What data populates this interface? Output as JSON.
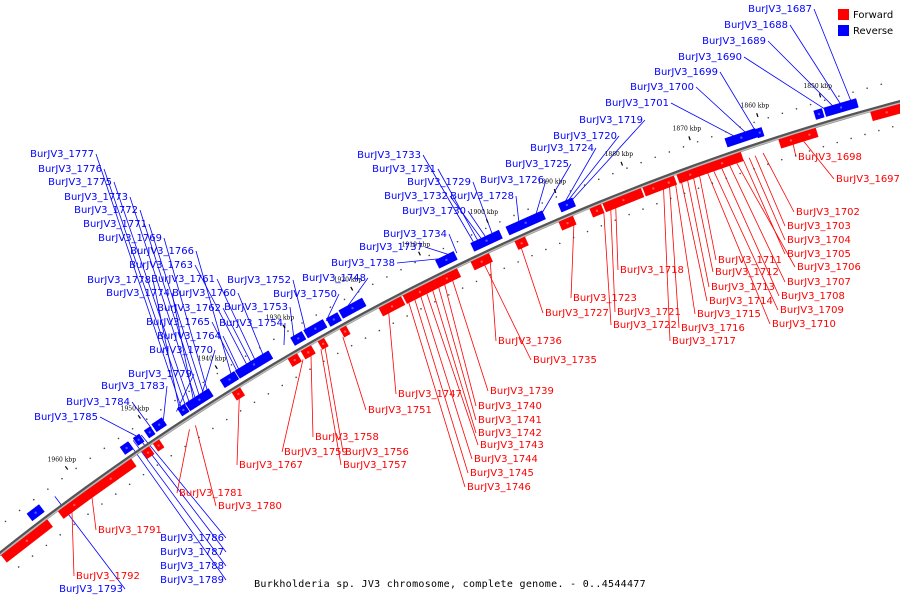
{
  "colors": {
    "forward": "#ff0000",
    "reverse": "#0000ff",
    "backbone": "#808080",
    "leader_forward": "#ff0000",
    "leader_reverse": "#0000ff"
  },
  "legend": {
    "forward": "Forward",
    "reverse": "Reverse"
  },
  "caption": "Burkholderia sp. JV3 chromosome, complete genome. - 0..4544477",
  "ticks": [
    "1850 kbp",
    "1860 kbp",
    "1870 kbp",
    "1880 kbp",
    "1890 kbp",
    "1900 kbp",
    "1910 kbp",
    "1920 kbp",
    "1930 kbp",
    "1940 kbp",
    "1950 kbp",
    "1960 kbp"
  ],
  "reverse_labels": [
    "BurJV3_1687",
    "BurJV3_1688",
    "BurJV3_1689",
    "BurJV3_1690",
    "BurJV3_1699",
    "BurJV3_1700",
    "BurJV3_1701",
    "BurJV3_1719",
    "BurJV3_1720",
    "BurJV3_1724",
    "BurJV3_1725",
    "BurJV3_1726",
    "BurJV3_1728",
    "BurJV3_1729",
    "BurJV3_1730",
    "BurJV3_1731",
    "BurJV3_1732",
    "BurJV3_1733",
    "BurJV3_1734",
    "BurJV3_1737",
    "BurJV3_1738",
    "BurJV3_1748",
    "BurJV3_1750",
    "BurJV3_1752",
    "BurJV3_1753",
    "BurJV3_1754",
    "BurJV3_1760",
    "BurJV3_1761",
    "BurJV3_1762",
    "BurJV3_1763",
    "BurJV3_1764",
    "BurJV3_1765",
    "BurJV3_1766",
    "BurJV3_1769",
    "BurJV3_1770",
    "BurJV3_1771",
    "BurJV3_1772",
    "BurJV3_1773",
    "BurJV3_1774",
    "BurJV3_1775",
    "BurJV3_1776",
    "BurJV3_1777",
    "BurJV3_1778",
    "BurJV3_1779",
    "BurJV3_1783",
    "BurJV3_1784",
    "BurJV3_1785",
    "BurJV3_1786",
    "BurJV3_1787",
    "BurJV3_1788",
    "BurJV3_1789",
    "BurJV3_1793"
  ],
  "forward_labels": [
    "BurJV3_1697",
    "BurJV3_1698",
    "BurJV3_1702",
    "BurJV3_1703",
    "BurJV3_1704",
    "BurJV3_1705",
    "BurJV3_1706",
    "BurJV3_1707",
    "BurJV3_1708",
    "BurJV3_1709",
    "BurJV3_1710",
    "BurJV3_1711",
    "BurJV3_1712",
    "BurJV3_1713",
    "BurJV3_1714",
    "BurJV3_1715",
    "BurJV3_1716",
    "BurJV3_1717",
    "BurJV3_1718",
    "BurJV3_1721",
    "BurJV3_1722",
    "BurJV3_1723",
    "BurJV3_1727",
    "BurJV3_1735",
    "BurJV3_1736",
    "BurJV3_1739",
    "BurJV3_1740",
    "BurJV3_1741",
    "BurJV3_1742",
    "BurJV3_1743",
    "BurJV3_1744",
    "BurJV3_1745",
    "BurJV3_1746",
    "BurJV3_1747",
    "BurJV3_1751",
    "BurJV3_1756",
    "BurJV3_1757",
    "BurJV3_1758",
    "BurJV3_1759",
    "BurJV3_1767",
    "BurJV3_1780",
    "BurJV3_1781",
    "BurJV3_1791",
    "BurJV3_1792"
  ]
}
